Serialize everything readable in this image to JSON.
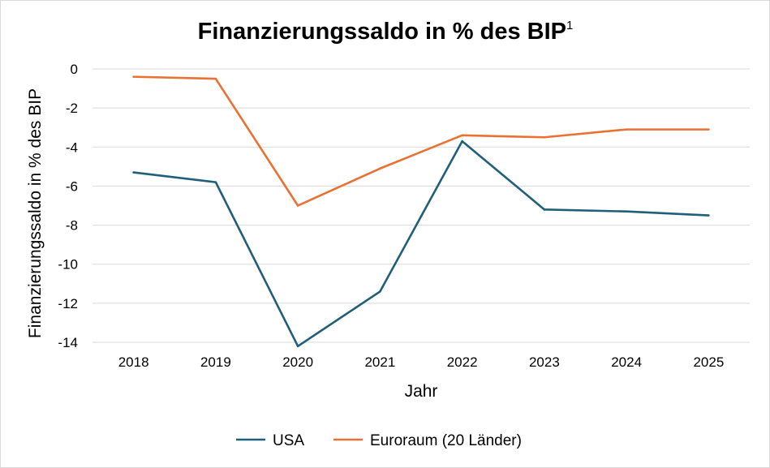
{
  "chart_data": {
    "type": "line",
    "title": "Finanzierungssaldo in % des BIP",
    "title_superscript": "1",
    "xlabel": "Jahr",
    "ylabel": "Finanzierungssaldo in % des BIP",
    "categories": [
      "2018",
      "2019",
      "2020",
      "2021",
      "2022",
      "2023",
      "2024",
      "2025"
    ],
    "ylim": [
      -14,
      0
    ],
    "yticks": [
      0,
      -2,
      -4,
      -6,
      -8,
      -10,
      -12,
      -14
    ],
    "grid": true,
    "legend": "bottom",
    "series": [
      {
        "name": "USA",
        "color": "#1f5f7a",
        "values": [
          -5.3,
          -5.8,
          -14.2,
          -11.4,
          -3.7,
          -7.2,
          -7.3,
          -7.5
        ]
      },
      {
        "name": "Euroraum (20 Länder)",
        "color": "#e97132",
        "values": [
          -0.4,
          -0.5,
          -7.0,
          -5.1,
          -3.4,
          -3.5,
          -3.1,
          -3.1
        ]
      }
    ]
  }
}
